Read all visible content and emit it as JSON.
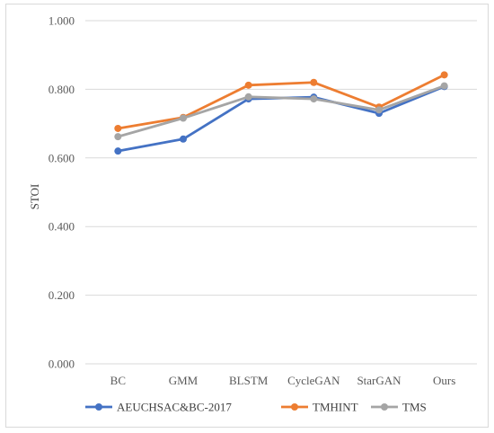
{
  "chart_data": {
    "type": "line",
    "title": "",
    "xlabel": "",
    "ylabel": "STOI",
    "categories": [
      "BC",
      "GMM",
      "BLSTM",
      "CycleGAN",
      "StarGAN",
      "Ours"
    ],
    "ylim": [
      0,
      1
    ],
    "yticks": [
      "0.000",
      "0.200",
      "0.400",
      "0.600",
      "0.800",
      "1.000"
    ],
    "grid": true,
    "legend_position": "bottom",
    "series": [
      {
        "name": "AEUCHSAC&BC-2017",
        "color": "#4472C4",
        "values": [
          0.62,
          0.655,
          0.772,
          0.777,
          0.73,
          0.808
        ]
      },
      {
        "name": "TMHINT",
        "color": "#ED7D31",
        "values": [
          0.686,
          0.718,
          0.812,
          0.82,
          0.748,
          0.842
        ]
      },
      {
        "name": "TMS",
        "color": "#A5A5A5",
        "values": [
          0.662,
          0.716,
          0.778,
          0.772,
          0.74,
          0.81
        ]
      }
    ]
  }
}
